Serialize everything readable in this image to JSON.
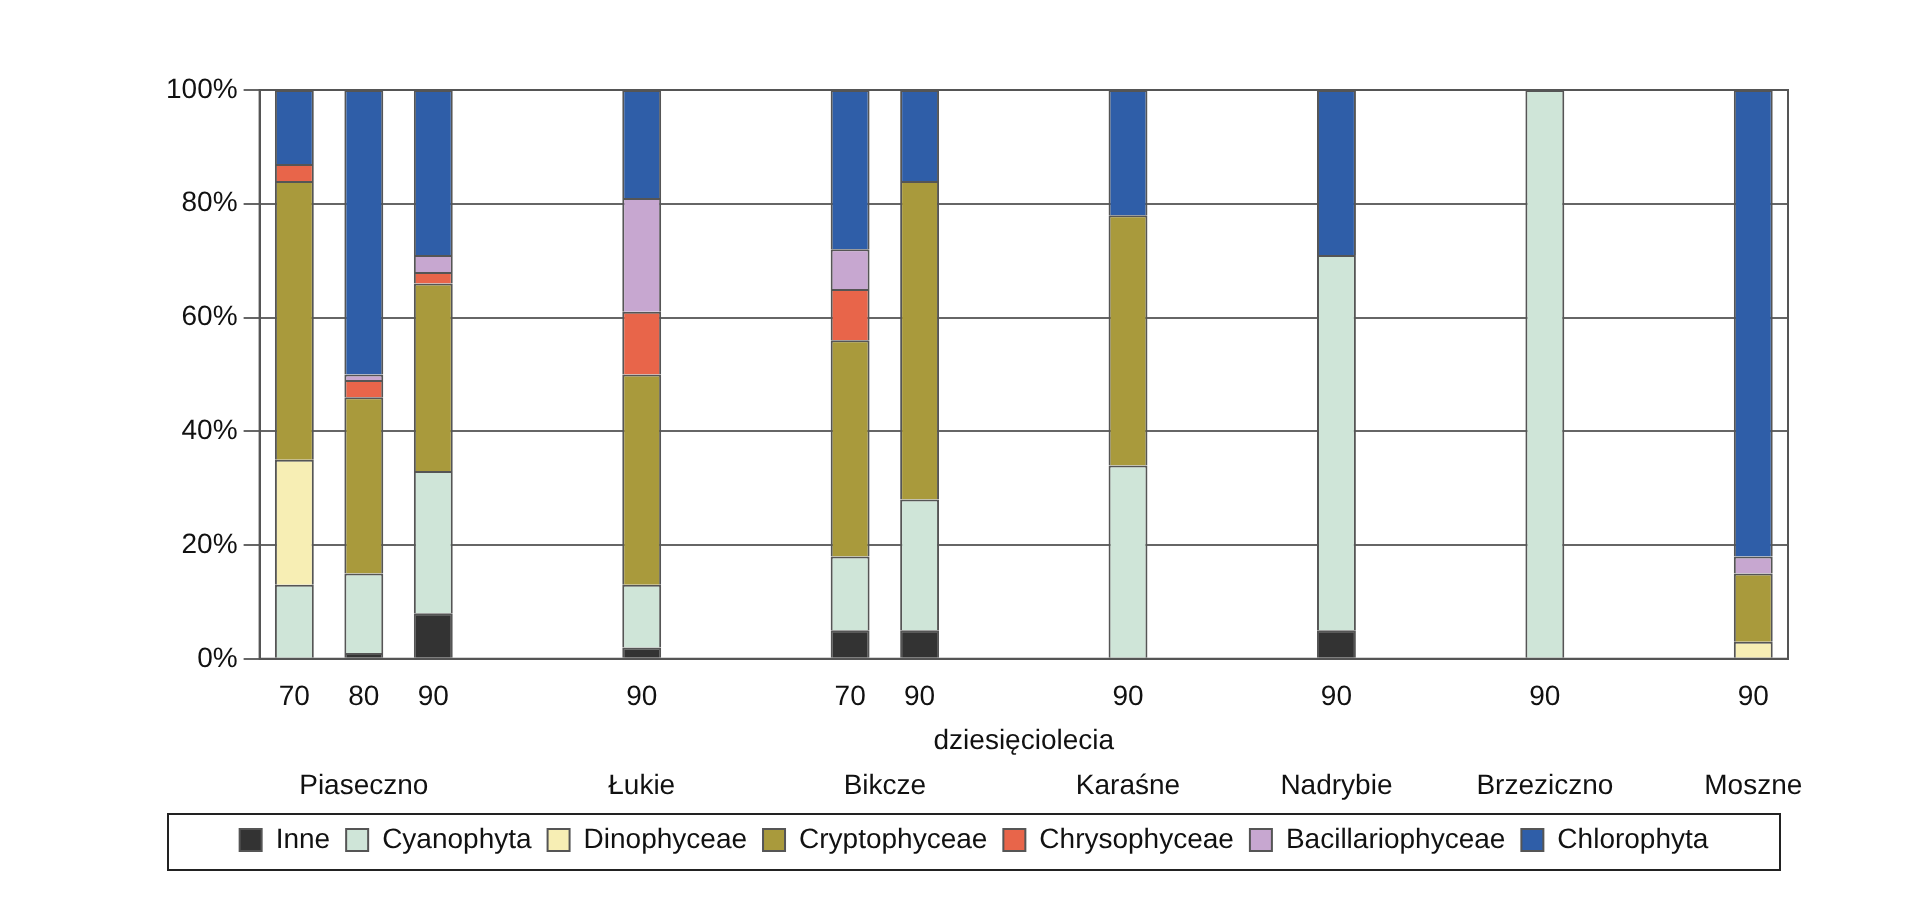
{
  "chart_data": {
    "type": "bar",
    "stacked": true,
    "xlabel": "dziesięciolecia",
    "categories": [
      "70",
      "80",
      "90",
      null,
      null,
      "90",
      null,
      null,
      "70",
      "90",
      null,
      null,
      "90",
      null,
      null,
      "90",
      null,
      null,
      "90",
      null,
      null,
      "90"
    ],
    "series": [
      {
        "name": "Inne",
        "color": "#333333",
        "values": [
          0,
          1,
          8,
          null,
          null,
          2,
          null,
          null,
          5,
          5,
          null,
          null,
          0,
          null,
          null,
          5,
          null,
          null,
          0,
          null,
          null,
          0
        ]
      },
      {
        "name": "Cyanophyta",
        "color": "#cfe5d8",
        "values": [
          13,
          14,
          25,
          null,
          null,
          11,
          null,
          null,
          13,
          23,
          null,
          null,
          34,
          null,
          null,
          66,
          null,
          null,
          100,
          null,
          null,
          0
        ]
      },
      {
        "name": "Dinophyceae",
        "color": "#f7eeb4",
        "values": [
          22,
          0,
          0,
          null,
          null,
          0,
          null,
          null,
          0,
          0,
          null,
          null,
          0,
          null,
          null,
          0,
          null,
          null,
          0,
          null,
          null,
          3
        ]
      },
      {
        "name": "Cryptophyceae",
        "color": "#a99a3c",
        "values": [
          49,
          31,
          33,
          null,
          null,
          37,
          null,
          null,
          38,
          56,
          null,
          null,
          44,
          null,
          null,
          0,
          null,
          null,
          0,
          null,
          null,
          12
        ]
      },
      {
        "name": "Chrysophyceae",
        "color": "#e8654a",
        "values": [
          3,
          3,
          2,
          null,
          null,
          11,
          null,
          null,
          9,
          0,
          null,
          null,
          0,
          null,
          null,
          0,
          null,
          null,
          0,
          null,
          null,
          0
        ]
      },
      {
        "name": "Bacillariophyceae",
        "color": "#c7a7d0",
        "values": [
          0,
          1,
          3,
          null,
          null,
          20,
          null,
          null,
          7,
          0,
          null,
          null,
          0,
          null,
          null,
          0,
          null,
          null,
          0,
          null,
          null,
          3
        ]
      },
      {
        "name": "Chlorophyta",
        "color": "#2f5ea8",
        "values": [
          13,
          50,
          29,
          null,
          null,
          19,
          null,
          null,
          28,
          16,
          null,
          null,
          22,
          null,
          null,
          29,
          null,
          null,
          0,
          null,
          null,
          82
        ]
      }
    ],
    "ylim": [
      0,
      100
    ],
    "yticks": [
      {
        "value": 0,
        "label": "0%"
      },
      {
        "value": 20,
        "label": "20%"
      },
      {
        "value": 40,
        "label": "40%"
      },
      {
        "value": 60,
        "label": "60%"
      },
      {
        "value": 80,
        "label": "80%"
      },
      {
        "value": 100,
        "label": "100%"
      }
    ],
    "grid": "y",
    "legend": "bottom",
    "annotations": [
      "Piaseczno",
      "Łukie",
      "Bikcze",
      "Karaśne",
      "Nadrybie",
      "Brzeziczno",
      "Moszne"
    ]
  }
}
